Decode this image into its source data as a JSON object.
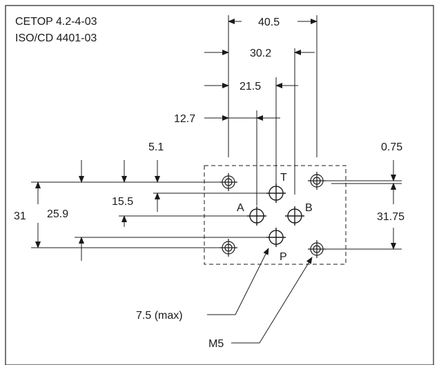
{
  "standard": {
    "cetop": "CETOP 4.2-4-03",
    "iso": "ISO/CD 4401-03"
  },
  "dimensions": {
    "horizontal": {
      "overall_outer_holes": "40.5",
      "port_b": "30.2",
      "port_t": "21.5",
      "port_p": "12.7",
      "hole_offset": "0.75"
    },
    "vertical": {
      "overall_holes_left": "31",
      "port_a_b_level": "25.9",
      "port_p_level": "15.5",
      "port_t_level": "5.1",
      "overall_holes_right": "31.75"
    }
  },
  "ports": {
    "t": "T",
    "a": "A",
    "b": "B",
    "p": "P"
  },
  "callouts": {
    "port_diameter": "7.5 (max)",
    "thread": "M5"
  },
  "colors": {
    "line": "#1a1a1a",
    "background": "#ffffff"
  }
}
